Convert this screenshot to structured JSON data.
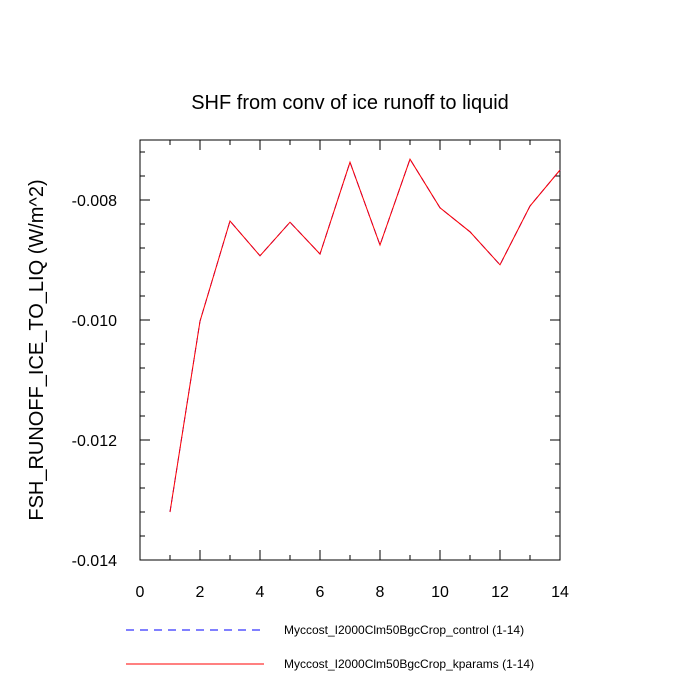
{
  "chart_data": {
    "type": "line",
    "title": "SHF from conv of ice runoff to liquid",
    "xlabel": "",
    "ylabel": "FSH_RUNOFF_ICE_TO_LIQ  (W/m^2)",
    "xlim": [
      0,
      14
    ],
    "ylim": [
      -0.014,
      -0.007
    ],
    "x_ticks": [
      0,
      2,
      4,
      6,
      8,
      10,
      12,
      14
    ],
    "x_tick_labels": [
      "0",
      "2",
      "4",
      "6",
      "8",
      "10",
      "12",
      "14"
    ],
    "y_ticks": [
      -0.014,
      -0.012,
      -0.01,
      -0.008
    ],
    "y_tick_labels": [
      "-0.014",
      "-0.012",
      "-0.010",
      "-0.008"
    ],
    "grid": false,
    "legend_position": "bottom",
    "x": [
      1,
      2,
      3,
      4,
      5,
      6,
      7,
      8,
      9,
      10,
      11,
      12,
      13,
      14
    ],
    "series": [
      {
        "name": "Myccost_I2000Clm50BgcCrop_control (1-14)",
        "color": "#0000ff",
        "dash": "dashed",
        "values": [
          -0.0132,
          -0.01002,
          -0.00835,
          -0.00893,
          -0.00837,
          -0.0089,
          -0.00737,
          -0.00875,
          -0.00732,
          -0.00813,
          -0.00853,
          -0.00908,
          -0.0081,
          -0.0075
        ]
      },
      {
        "name": "Myccost_I2000Clm50BgcCrop_kparams (1-14)",
        "color": "#ff0000",
        "dash": "solid",
        "values": [
          -0.0132,
          -0.01002,
          -0.00835,
          -0.00893,
          -0.00837,
          -0.0089,
          -0.00737,
          -0.00875,
          -0.00732,
          -0.00813,
          -0.00853,
          -0.00908,
          -0.0081,
          -0.0075
        ]
      }
    ]
  }
}
